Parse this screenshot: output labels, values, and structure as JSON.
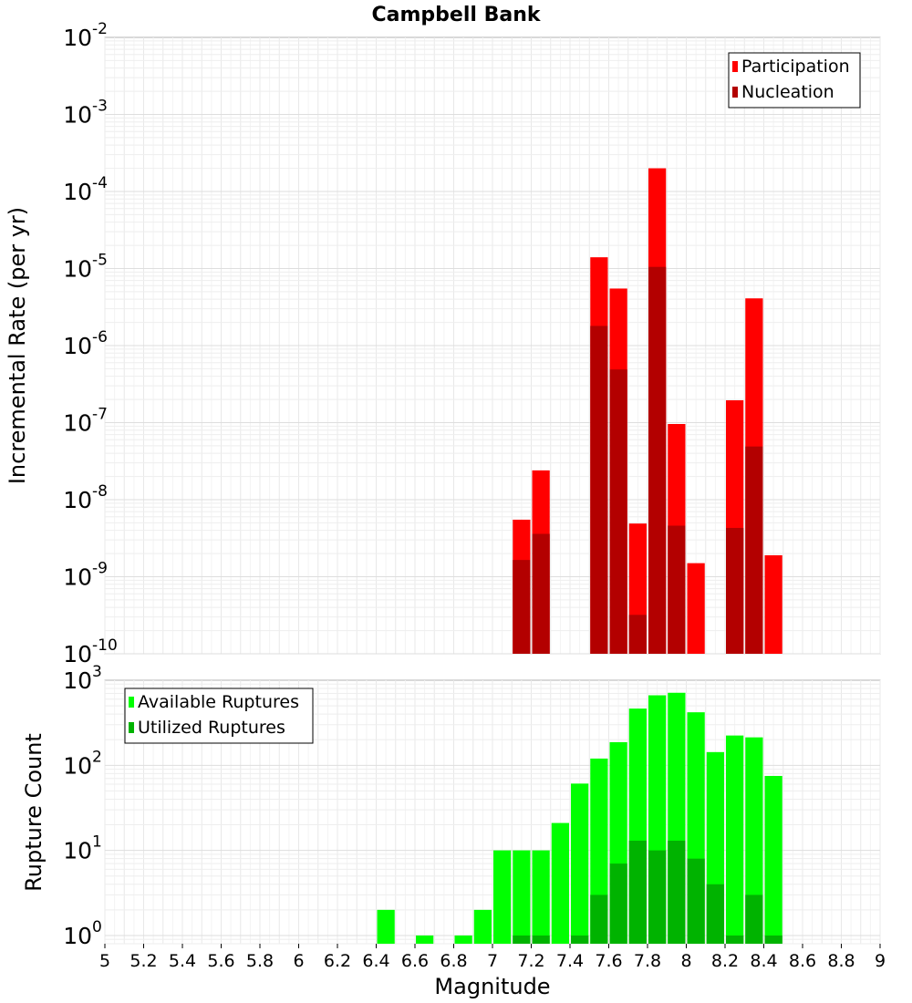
{
  "title": "Campbell Bank",
  "x_axis": {
    "label": "Magnitude",
    "ticks": [
      "5",
      "5.2",
      "5.4",
      "5.6",
      "5.8",
      "6",
      "6.2",
      "6.4",
      "6.6",
      "6.8",
      "7",
      "7.2",
      "7.4",
      "7.6",
      "7.8",
      "8",
      "8.2",
      "8.4",
      "8.6",
      "8.8",
      "9"
    ]
  },
  "chart_data": [
    {
      "type": "bar",
      "ylabel": "Incremental Rate (per yr)",
      "yscale": "log",
      "ylim": [
        1e-10,
        0.01
      ],
      "xlim": [
        5,
        9
      ],
      "y_ticks": [
        {
          "base": "10",
          "exp": "-2",
          "value": 0.01
        },
        {
          "base": "10",
          "exp": "-3",
          "value": 0.001
        },
        {
          "base": "10",
          "exp": "-4",
          "value": 0.0001
        },
        {
          "base": "10",
          "exp": "-5",
          "value": 1e-05
        },
        {
          "base": "10",
          "exp": "-6",
          "value": 1e-06
        },
        {
          "base": "10",
          "exp": "-7",
          "value": 1e-07
        },
        {
          "base": "10",
          "exp": "-8",
          "value": 1e-08
        },
        {
          "base": "10",
          "exp": "-9",
          "value": 1e-09
        },
        {
          "base": "10",
          "exp": "-10",
          "value": 1e-10
        }
      ],
      "legend_position": "top-right",
      "grid": true,
      "series": [
        {
          "name": "Participation",
          "color": "#ff0000",
          "points": [
            {
              "x": 7.15,
              "y": 5.5e-09
            },
            {
              "x": 7.25,
              "y": 2.4e-08
            },
            {
              "x": 7.55,
              "y": 1.4e-05
            },
            {
              "x": 7.65,
              "y": 5.5e-06
            },
            {
              "x": 7.75,
              "y": 4.9e-09
            },
            {
              "x": 7.85,
              "y": 0.0002
            },
            {
              "x": 7.95,
              "y": 9.6e-08
            },
            {
              "x": 8.05,
              "y": 1.5e-09
            },
            {
              "x": 8.25,
              "y": 1.95e-07
            },
            {
              "x": 8.35,
              "y": 4.1e-06
            },
            {
              "x": 8.45,
              "y": 1.9e-09
            }
          ]
        },
        {
          "name": "Nucleation",
          "color": "#b30000",
          "points": [
            {
              "x": 7.15,
              "y": 1.65e-09
            },
            {
              "x": 7.25,
              "y": 3.6e-09
            },
            {
              "x": 7.55,
              "y": 1.8e-06
            },
            {
              "x": 7.65,
              "y": 4.9e-07
            },
            {
              "x": 7.75,
              "y": 3.2e-10
            },
            {
              "x": 7.85,
              "y": 1.05e-05
            },
            {
              "x": 7.95,
              "y": 4.6e-09
            },
            {
              "x": 8.25,
              "y": 4.3e-09
            },
            {
              "x": 8.35,
              "y": 4.9e-08
            }
          ]
        }
      ]
    },
    {
      "type": "bar",
      "ylabel": "Rupture Count",
      "yscale": "log",
      "ylim": [
        0.8,
        1000
      ],
      "xlim": [
        5,
        9
      ],
      "y_ticks": [
        {
          "base": "10",
          "exp": "3",
          "value": 1000
        },
        {
          "base": "10",
          "exp": "2",
          "value": 100
        },
        {
          "base": "10",
          "exp": "1",
          "value": 10
        },
        {
          "base": "10",
          "exp": "0",
          "value": 1
        }
      ],
      "legend_position": "top-left",
      "grid": true,
      "series": [
        {
          "name": "Available Ruptures",
          "color": "#00ff00",
          "points": [
            {
              "x": 6.45,
              "y": 2
            },
            {
              "x": 6.65,
              "y": 1
            },
            {
              "x": 6.85,
              "y": 1
            },
            {
              "x": 6.95,
              "y": 2
            },
            {
              "x": 7.05,
              "y": 10
            },
            {
              "x": 7.15,
              "y": 10
            },
            {
              "x": 7.25,
              "y": 10
            },
            {
              "x": 7.35,
              "y": 21
            },
            {
              "x": 7.45,
              "y": 61
            },
            {
              "x": 7.55,
              "y": 120
            },
            {
              "x": 7.65,
              "y": 187
            },
            {
              "x": 7.75,
              "y": 464
            },
            {
              "x": 7.85,
              "y": 665
            },
            {
              "x": 7.95,
              "y": 712
            },
            {
              "x": 8.05,
              "y": 420
            },
            {
              "x": 8.15,
              "y": 143
            },
            {
              "x": 8.25,
              "y": 224
            },
            {
              "x": 8.35,
              "y": 213
            },
            {
              "x": 8.45,
              "y": 75
            }
          ]
        },
        {
          "name": "Utilized Ruptures",
          "color": "#00b300",
          "points": [
            {
              "x": 7.15,
              "y": 1
            },
            {
              "x": 7.25,
              "y": 1
            },
            {
              "x": 7.45,
              "y": 1
            },
            {
              "x": 7.55,
              "y": 3
            },
            {
              "x": 7.65,
              "y": 7
            },
            {
              "x": 7.75,
              "y": 13
            },
            {
              "x": 7.85,
              "y": 10
            },
            {
              "x": 7.95,
              "y": 13
            },
            {
              "x": 8.05,
              "y": 8
            },
            {
              "x": 8.15,
              "y": 4
            },
            {
              "x": 8.25,
              "y": 1
            },
            {
              "x": 8.35,
              "y": 3
            },
            {
              "x": 8.45,
              "y": 1
            }
          ]
        }
      ]
    }
  ]
}
